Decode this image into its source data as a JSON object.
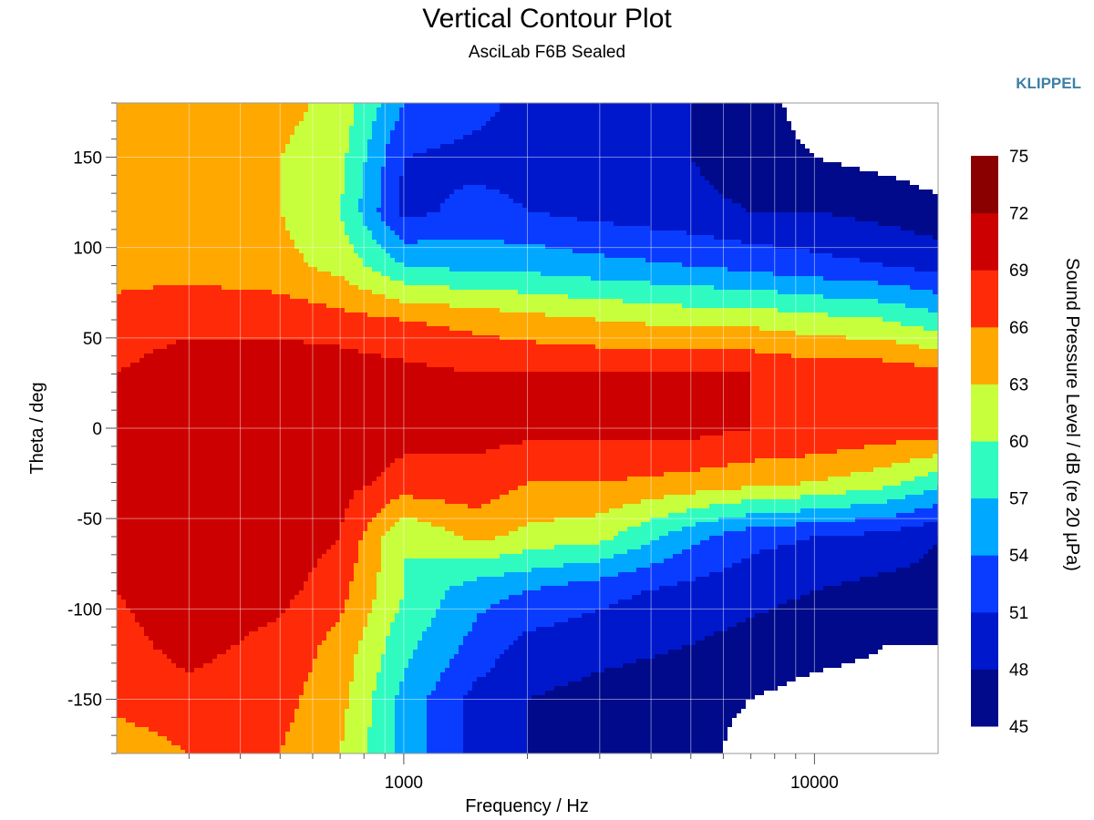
{
  "chart_data": {
    "type": "heatmap",
    "title": "Vertical Contour Plot",
    "subtitle": "AsciLab F6B Sealed",
    "brand": "KLIPPEL",
    "xlabel": "Frequency / Hz",
    "ylabel": "Theta / deg",
    "colorbar_label": "Sound Pressure Level / dB (re 20 µPa)",
    "x_scale": "log",
    "xlim": [
      200,
      20000
    ],
    "ylim": [
      -180,
      180
    ],
    "x_ticks": [
      1000,
      10000
    ],
    "x_tick_labels": [
      "1000",
      "10000"
    ],
    "y_ticks": [
      150,
      100,
      50,
      0,
      -50,
      -100,
      -150
    ],
    "y_tick_labels": [
      "150",
      "100",
      "50",
      "0",
      "-50",
      "-100",
      "-150"
    ],
    "grid": true,
    "color_levels": [
      45,
      48,
      51,
      54,
      57,
      60,
      63,
      66,
      69,
      72,
      75
    ],
    "color_level_labels": [
      "45",
      "48",
      "51",
      "54",
      "57",
      "60",
      "63",
      "66",
      "69",
      "72",
      "75"
    ],
    "band_colors": [
      "#000a8a",
      "#0018cc",
      "#0a3cff",
      "#00a8ff",
      "#2ffbc0",
      "#c8ff3c",
      "#ffa800",
      "#ff2a08",
      "#cc0000",
      "#8a0000"
    ],
    "frequencies_hz": [
      200,
      300,
      500,
      700,
      1000,
      1500,
      2000,
      3000,
      5000,
      7000,
      10000,
      15000,
      20000
    ],
    "theta_deg": [
      -180,
      -150,
      -120,
      -90,
      -60,
      -30,
      0,
      30,
      60,
      90,
      120,
      150,
      180
    ],
    "spl_db": [
      [
        64,
        66,
        66,
        63,
        56,
        50,
        48,
        47,
        46,
        44,
        43,
        43,
        43
      ],
      [
        67,
        68,
        67,
        64,
        56,
        50,
        48,
        47,
        46,
        45,
        44,
        44,
        44
      ],
      [
        68,
        70,
        68,
        65,
        58,
        53,
        50,
        49,
        48,
        47,
        46,
        45,
        45
      ],
      [
        69,
        71,
        70,
        67,
        60,
        55,
        54,
        52,
        50,
        49,
        48,
        47,
        47
      ],
      [
        70,
        71,
        71,
        69,
        60,
        64,
        62,
        61,
        55,
        52,
        51,
        50,
        48
      ],
      [
        70,
        71,
        71,
        70,
        68,
        68,
        66,
        66,
        65,
        64,
        63,
        61,
        58
      ],
      [
        70,
        71,
        71,
        71,
        70,
        70,
        70,
        70,
        70,
        69,
        69,
        68,
        68
      ],
      [
        69,
        71,
        71,
        71,
        70,
        69,
        69,
        69,
        69,
        69,
        68,
        68,
        67
      ],
      [
        67,
        68,
        68,
        67,
        66,
        65,
        64,
        63,
        62,
        62,
        61,
        60,
        58
      ],
      [
        65,
        65,
        64,
        62,
        57,
        56,
        56,
        55,
        54,
        53,
        52,
        51,
        50
      ],
      [
        64,
        65,
        63,
        60,
        50,
        52,
        51,
        50,
        49,
        48,
        48,
        47,
        46
      ],
      [
        64,
        64,
        63,
        61,
        51,
        50,
        50,
        49,
        48,
        46,
        45,
        44,
        43
      ],
      [
        64,
        64,
        64,
        62,
        54,
        52,
        50,
        49,
        48,
        46,
        44,
        43,
        43
      ]
    ]
  }
}
